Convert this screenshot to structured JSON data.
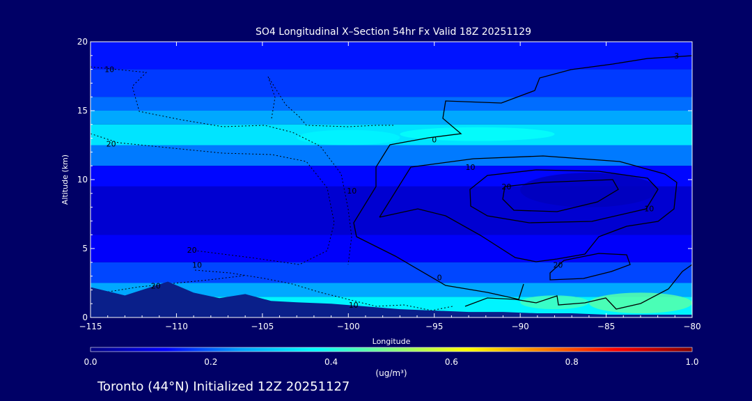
{
  "figure": {
    "footer_text": "Toronto (44°N) Initialized 12Z 20251127",
    "colors": {
      "background": "#000066",
      "text": "#ffffff",
      "contour": "#000000",
      "terrain": "#0a1f8a"
    }
  },
  "chart_data": {
    "type": "heatmap",
    "title": "SO4 Longitudinal X–Section 54hr  Fx Valid 18Z 20251129",
    "xlabel": "Longitude",
    "ylabel": "Altitude (km)",
    "xlim": [
      -115,
      -80
    ],
    "ylim": [
      0,
      20
    ],
    "x_ticks": [
      -115,
      -110,
      -105,
      -100,
      -95,
      -90,
      -85,
      -80
    ],
    "x_tick_labels": [
      "−115",
      "−110",
      "−105",
      "−100",
      "−95",
      "−90",
      "−85",
      "−80"
    ],
    "y_ticks": [
      0,
      5,
      10,
      15,
      20
    ],
    "y_tick_labels": [
      "0",
      "5",
      "10",
      "15",
      "20"
    ],
    "grid": false,
    "colorbar": {
      "label": "(ug/m³)",
      "range": [
        0.0,
        1.0
      ],
      "tick_values": [
        0.0,
        0.2,
        0.4,
        0.6,
        0.8,
        1.0
      ],
      "tick_labels": [
        "0.0",
        "0.2",
        "0.4",
        "0.6",
        "0.8",
        "1.0"
      ],
      "colors": [
        "#000080",
        "#0000ff",
        "#00a0ff",
        "#00ffff",
        "#80ff80",
        "#ffff00",
        "#ff8000",
        "#ff0000",
        "#800000"
      ]
    },
    "field_bands": [
      {
        "alt_range": [
          18,
          20
        ],
        "value": 0.14
      },
      {
        "alt_range": [
          16,
          18
        ],
        "value": 0.17
      },
      {
        "alt_range": [
          15,
          16
        ],
        "value": 0.21
      },
      {
        "alt_range": [
          14,
          15
        ],
        "value": 0.26
      },
      {
        "alt_range": [
          12.5,
          14
        ],
        "value": 0.34
      },
      {
        "alt_range": [
          11,
          12.5
        ],
        "value": 0.22
      },
      {
        "alt_range": [
          9.5,
          11
        ],
        "value": 0.13
      },
      {
        "alt_range": [
          6,
          9.5
        ],
        "value": 0.08
      },
      {
        "alt_range": [
          4,
          6
        ],
        "value": 0.12
      },
      {
        "alt_range": [
          2.5,
          4
        ],
        "value": 0.18
      },
      {
        "alt_range": [
          1.5,
          2.5
        ],
        "value": 0.26
      },
      {
        "alt_range": [
          0,
          1.5
        ],
        "value": 0.36
      }
    ],
    "field_features": [
      {
        "lon_range": [
          -97,
          -88
        ],
        "alt_range": [
          12.8,
          13.8
        ],
        "value": 0.38
      },
      {
        "lon_range": [
          -103,
          -97
        ],
        "alt_range": [
          12.5,
          13.6
        ],
        "value": 0.36
      },
      {
        "lon_range": [
          -90,
          -82
        ],
        "alt_range": [
          8,
          10.5
        ],
        "value": 0.06
      },
      {
        "lon_range": [
          -86,
          -80
        ],
        "alt_range": [
          0.3,
          1.8
        ],
        "value": 0.46
      },
      {
        "lon_range": [
          -90,
          -86
        ],
        "alt_range": [
          0.6,
          1.6
        ],
        "value": 0.44
      }
    ],
    "terrain": {
      "lon": [
        -115,
        -113,
        -111.5,
        -110.5,
        -109,
        -107.5,
        -106,
        -104.5,
        -103,
        -101,
        -99,
        -97,
        -95,
        -93,
        -91,
        -89,
        -87,
        -85,
        -83,
        -81,
        -80
      ],
      "alt": [
        2.2,
        1.6,
        2.2,
        2.6,
        1.8,
        1.4,
        1.7,
        1.2,
        1.1,
        1.0,
        0.8,
        0.6,
        0.5,
        0.4,
        0.4,
        0.3,
        0.3,
        0.2,
        0.2,
        0.2,
        0.2
      ]
    },
    "contour_labels": [
      {
        "text": "10",
        "lon": -113.9,
        "alt": 17.8
      },
      {
        "text": "20",
        "lon": -113.8,
        "alt": 12.4
      },
      {
        "text": "20",
        "lon": -109.1,
        "alt": 4.7
      },
      {
        "text": "10",
        "lon": -108.8,
        "alt": 3.6
      },
      {
        "text": "20",
        "lon": -111.2,
        "alt": 2.1
      },
      {
        "text": "10",
        "lon": -99.7,
        "alt": 0.7
      },
      {
        "text": "10",
        "lon": -99.8,
        "alt": 9.0
      },
      {
        "text": "0",
        "lon": -95.0,
        "alt": 12.7
      },
      {
        "text": "10",
        "lon": -92.9,
        "alt": 10.7
      },
      {
        "text": "3",
        "lon": -80.9,
        "alt": 18.8
      },
      {
        "text": "20",
        "lon": -90.8,
        "alt": 9.3
      },
      {
        "text": "10",
        "lon": -82.5,
        "alt": 7.7
      },
      {
        "text": "20",
        "lon": -87.8,
        "alt": 3.6
      },
      {
        "text": "0",
        "lon": -94.7,
        "alt": 2.7
      }
    ]
  }
}
